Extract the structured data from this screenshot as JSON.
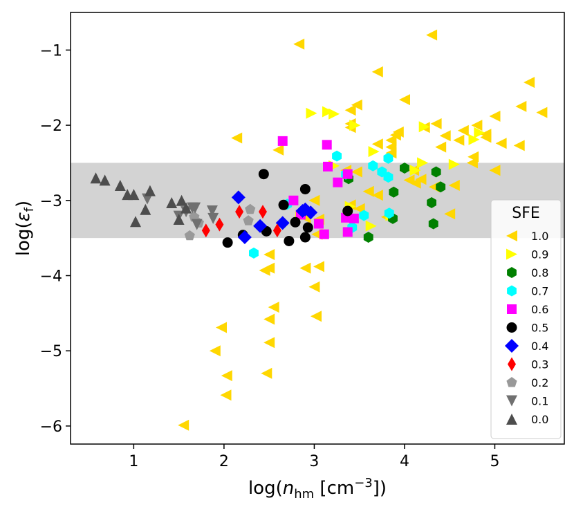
{
  "chart_data": {
    "type": "scatter",
    "xlabel": "log(n_hm [cm^-3])",
    "ylabel": "log(ε_f)",
    "xlim": [
      0.3,
      5.77
    ],
    "ylim": [
      -6.24,
      -0.5
    ],
    "xticks": [
      1,
      2,
      3,
      4,
      5
    ],
    "xtick_labels": [
      "1",
      "2",
      "3",
      "4",
      "5"
    ],
    "yticks": [
      -6,
      -5,
      -4,
      -3,
      -2,
      -1
    ],
    "ytick_labels": [
      "−6",
      "−5",
      "−4",
      "−3",
      "−2",
      "−1"
    ],
    "band": {
      "y_min": -3.5,
      "y_max": -2.5,
      "color": "#d3d3d3"
    },
    "legend": {
      "title": "SFE",
      "position": "lower-right"
    },
    "series": [
      {
        "name": "1.0",
        "marker": "triangle-left",
        "color": "#ffd700",
        "points": [
          [
            4.3,
            -0.8
          ],
          [
            2.83,
            -0.92
          ],
          [
            3.7,
            -1.29
          ],
          [
            5.38,
            -1.43
          ],
          [
            4.0,
            -1.66
          ],
          [
            3.47,
            -1.73
          ],
          [
            3.4,
            -1.8
          ],
          [
            5.29,
            -1.75
          ],
          [
            5.52,
            -1.83
          ],
          [
            5.0,
            -1.88
          ],
          [
            4.8,
            -2.0
          ],
          [
            4.65,
            -2.07
          ],
          [
            3.4,
            -1.98
          ],
          [
            3.4,
            -2.03
          ],
          [
            4.35,
            -1.98
          ],
          [
            3.93,
            -2.09
          ],
          [
            3.9,
            -2.13
          ],
          [
            4.22,
            -2.03
          ],
          [
            4.45,
            -2.14
          ],
          [
            4.9,
            -2.12
          ],
          [
            4.6,
            -2.2
          ],
          [
            4.9,
            -2.16
          ],
          [
            3.85,
            -2.2
          ],
          [
            3.7,
            -2.25
          ],
          [
            3.85,
            -2.29
          ],
          [
            4.4,
            -2.29
          ],
          [
            5.07,
            -2.24
          ],
          [
            5.27,
            -2.27
          ],
          [
            2.14,
            -2.17
          ],
          [
            2.6,
            -2.33
          ],
          [
            3.85,
            -2.37
          ],
          [
            4.76,
            -2.42
          ],
          [
            4.75,
            -2.5
          ],
          [
            3.47,
            -2.62
          ],
          [
            3.35,
            -2.6
          ],
          [
            4.1,
            -2.6
          ],
          [
            5.0,
            -2.6
          ],
          [
            4.05,
            -2.73
          ],
          [
            4.12,
            -2.77
          ],
          [
            4.18,
            -2.72
          ],
          [
            4.33,
            -2.82
          ],
          [
            4.55,
            -2.8
          ],
          [
            3.6,
            -2.88
          ],
          [
            3.7,
            -2.93
          ],
          [
            3.0,
            -3.0
          ],
          [
            3.4,
            -3.06
          ],
          [
            3.5,
            -3.11
          ],
          [
            2.9,
            -3.23
          ],
          [
            3.05,
            -3.25
          ],
          [
            4.5,
            -3.18
          ],
          [
            3.8,
            -3.22
          ],
          [
            3.03,
            -3.45
          ],
          [
            2.5,
            -3.72
          ],
          [
            2.45,
            -3.93
          ],
          [
            2.5,
            -3.9
          ],
          [
            2.9,
            -3.9
          ],
          [
            3.05,
            -3.88
          ],
          [
            3.0,
            -4.15
          ],
          [
            2.55,
            -4.42
          ],
          [
            2.5,
            -4.58
          ],
          [
            3.02,
            -4.54
          ],
          [
            1.97,
            -4.69
          ],
          [
            2.5,
            -4.89
          ],
          [
            1.9,
            -5.0
          ],
          [
            2.03,
            -5.33
          ],
          [
            2.47,
            -5.3
          ],
          [
            2.02,
            -5.59
          ],
          [
            1.55,
            -5.99
          ]
        ]
      },
      {
        "name": "0.9",
        "marker": "triangle-right",
        "color": "#ffff00",
        "points": [
          [
            2.97,
            -1.84
          ],
          [
            3.15,
            -1.82
          ],
          [
            3.22,
            -1.85
          ],
          [
            3.45,
            -2.0
          ],
          [
            4.22,
            -2.02
          ],
          [
            4.77,
            -2.19
          ],
          [
            4.83,
            -2.1
          ],
          [
            3.66,
            -2.35
          ],
          [
            4.55,
            -2.52
          ],
          [
            4.12,
            -2.6
          ],
          [
            4.2,
            -2.5
          ],
          [
            3.63,
            -3.34
          ],
          [
            3.85,
            -3.2
          ],
          [
            3.4,
            -3.08
          ],
          [
            3.22,
            -2.54
          ],
          [
            2.85,
            -3.22
          ]
        ]
      },
      {
        "name": "0.8",
        "marker": "hexagon",
        "color": "#008000",
        "points": [
          [
            4.0,
            -2.57
          ],
          [
            4.35,
            -2.62
          ],
          [
            4.4,
            -2.82
          ],
          [
            4.3,
            -3.03
          ],
          [
            3.88,
            -2.89
          ],
          [
            3.87,
            -3.24
          ],
          [
            3.6,
            -3.49
          ],
          [
            4.32,
            -3.31
          ],
          [
            3.38,
            -2.71
          ]
        ]
      },
      {
        "name": "0.7",
        "marker": "hexagon",
        "color": "#00ffff",
        "points": [
          [
            3.25,
            -2.41
          ],
          [
            3.65,
            -2.54
          ],
          [
            3.82,
            -2.44
          ],
          [
            3.75,
            -2.62
          ],
          [
            3.82,
            -2.69
          ],
          [
            3.55,
            -3.2
          ],
          [
            3.83,
            -3.17
          ],
          [
            3.42,
            -3.36
          ],
          [
            2.33,
            -3.7
          ],
          [
            3.35,
            -2.65
          ],
          [
            2.7,
            -3.05
          ]
        ]
      },
      {
        "name": "0.6",
        "marker": "square",
        "color": "#ff00ff",
        "points": [
          [
            2.65,
            -2.21
          ],
          [
            3.14,
            -2.26
          ],
          [
            3.15,
            -2.55
          ],
          [
            3.26,
            -2.76
          ],
          [
            3.37,
            -2.65
          ],
          [
            2.77,
            -3.0
          ],
          [
            3.05,
            -3.31
          ],
          [
            3.35,
            -3.23
          ],
          [
            3.44,
            -3.24
          ],
          [
            3.37,
            -3.42
          ],
          [
            3.11,
            -3.45
          ],
          [
            2.85,
            -3.19
          ]
        ]
      },
      {
        "name": "0.5",
        "marker": "circle",
        "color": "#000000",
        "points": [
          [
            2.44,
            -2.65
          ],
          [
            2.9,
            -2.85
          ],
          [
            2.66,
            -3.06
          ],
          [
            3.37,
            -3.14
          ],
          [
            2.79,
            -3.29
          ],
          [
            2.93,
            -3.36
          ],
          [
            2.21,
            -3.46
          ],
          [
            2.47,
            -3.41
          ],
          [
            2.9,
            -3.49
          ],
          [
            2.04,
            -3.56
          ],
          [
            2.72,
            -3.54
          ]
        ]
      },
      {
        "name": "0.4",
        "marker": "diamond",
        "color": "#0000ff",
        "points": [
          [
            2.16,
            -2.96
          ],
          [
            2.9,
            -3.12
          ],
          [
            2.96,
            -3.16
          ],
          [
            2.4,
            -3.34
          ],
          [
            2.65,
            -3.3
          ],
          [
            2.23,
            -3.49
          ],
          [
            2.87,
            -3.14
          ]
        ]
      },
      {
        "name": "0.3",
        "marker": "thin-diamond",
        "color": "#ff0000",
        "points": [
          [
            2.17,
            -3.15
          ],
          [
            2.43,
            -3.15
          ],
          [
            1.8,
            -3.4
          ],
          [
            1.95,
            -3.32
          ],
          [
            2.59,
            -3.4
          ]
        ]
      },
      {
        "name": "0.2",
        "marker": "pentagon",
        "color": "#999999",
        "points": [
          [
            2.29,
            -3.12
          ],
          [
            1.67,
            -3.22
          ],
          [
            1.72,
            -3.3
          ],
          [
            2.27,
            -3.27
          ],
          [
            1.62,
            -3.47
          ]
        ]
      },
      {
        "name": "0.1",
        "marker": "triangle-down",
        "color": "#707070",
        "points": [
          [
            1.15,
            -2.98
          ],
          [
            1.65,
            -3.1
          ],
          [
            1.68,
            -3.1
          ],
          [
            1.87,
            -3.14
          ],
          [
            1.5,
            -3.21
          ],
          [
            1.58,
            -3.15
          ],
          [
            1.88,
            -3.24
          ],
          [
            1.7,
            -3.32
          ]
        ]
      },
      {
        "name": "0.0",
        "marker": "triangle-up",
        "color": "#4d4d4d",
        "points": [
          [
            0.58,
            -2.7
          ],
          [
            0.68,
            -2.73
          ],
          [
            0.85,
            -2.8
          ],
          [
            0.93,
            -2.92
          ],
          [
            1.0,
            -2.92
          ],
          [
            1.18,
            -2.87
          ],
          [
            1.42,
            -3.03
          ],
          [
            1.13,
            -3.12
          ],
          [
            1.53,
            -3.0
          ],
          [
            1.58,
            -3.1
          ],
          [
            1.5,
            -3.25
          ],
          [
            1.02,
            -3.28
          ]
        ]
      }
    ]
  }
}
